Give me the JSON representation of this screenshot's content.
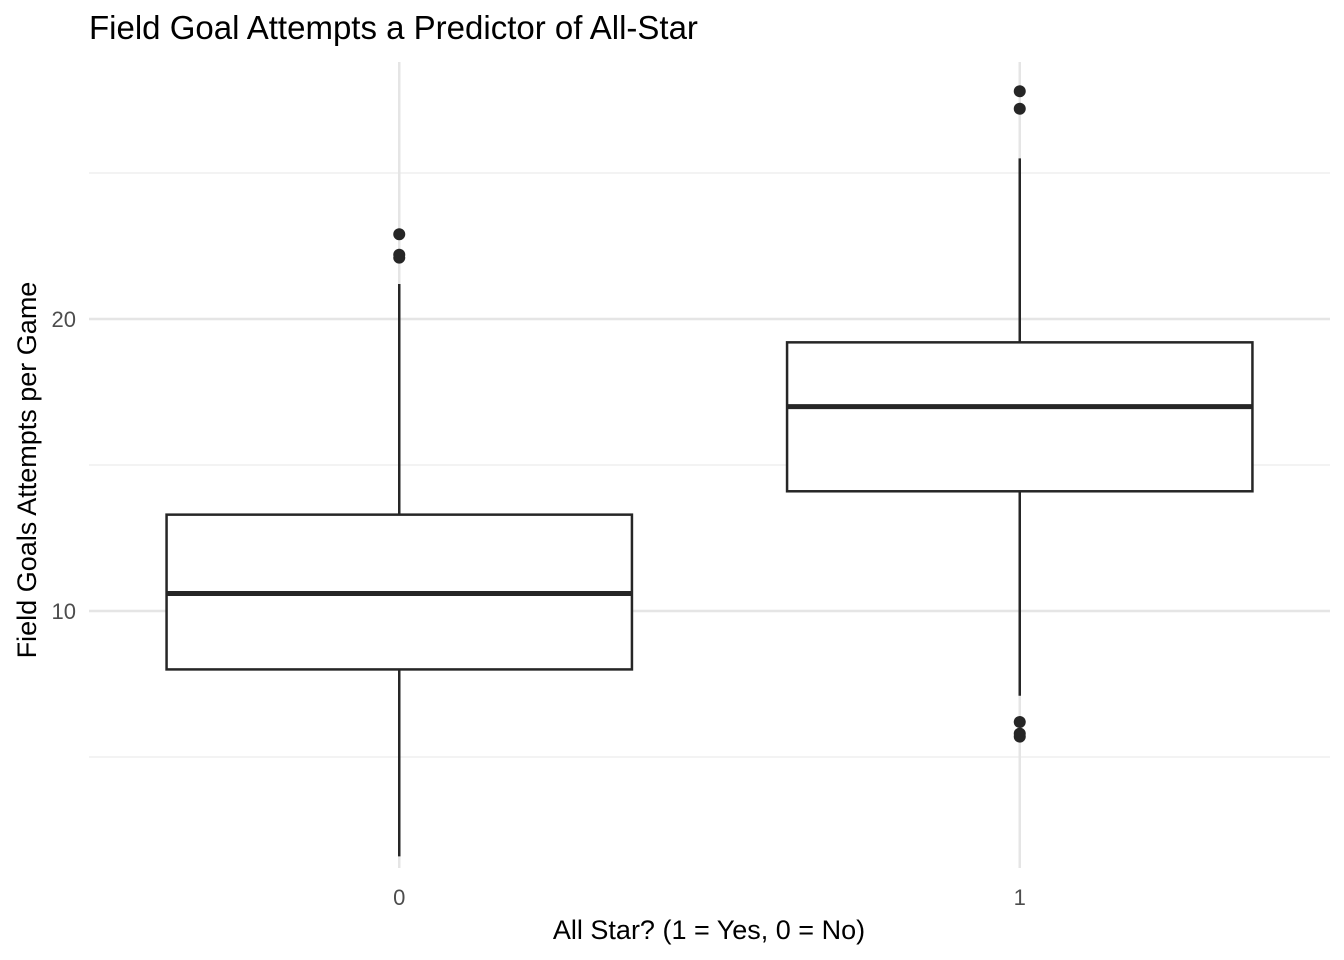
{
  "chart_data": {
    "type": "box",
    "title": "Field Goal Attempts a Predictor of All-Star",
    "xlabel": "All Star? (1 = Yes, 0 = No)",
    "ylabel": "Field Goals Attempts per Game",
    "categories": [
      "0",
      "1"
    ],
    "ylim": [
      1.2,
      28.8
    ],
    "yticks": [
      10,
      20
    ],
    "grid": true,
    "boxes": [
      {
        "category": "0",
        "lower_whisker": 1.6,
        "q1": 8.0,
        "median": 10.6,
        "q3": 13.3,
        "upper_whisker": 21.2,
        "outliers": [
          22.1,
          22.2,
          22.9
        ]
      },
      {
        "category": "1",
        "lower_whisker": 7.1,
        "q1": 14.1,
        "median": 17.0,
        "q3": 19.2,
        "upper_whisker": 25.5,
        "outliers": [
          5.7,
          5.8,
          6.2,
          27.2,
          27.8
        ]
      }
    ],
    "colors": {
      "box_stroke": "#262626",
      "box_fill": "#ffffff",
      "grid_major": "#e5e5e5",
      "grid_minor": "#efefef"
    }
  }
}
